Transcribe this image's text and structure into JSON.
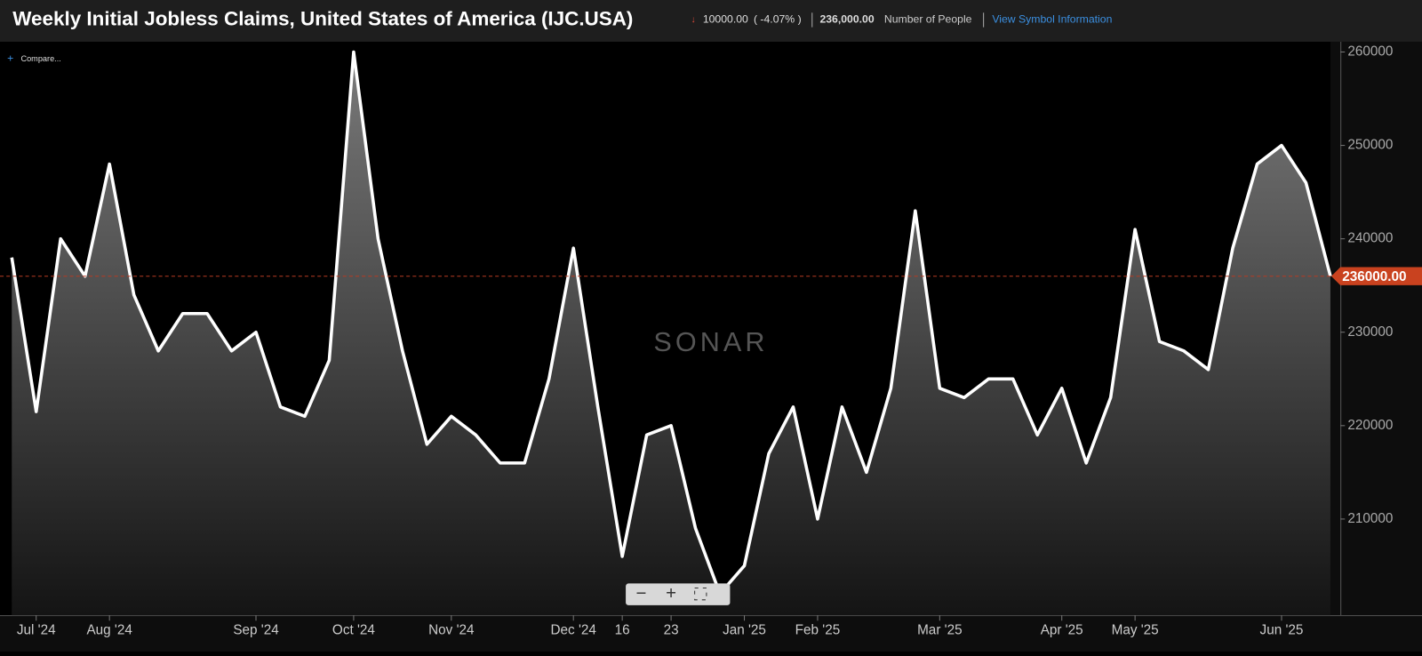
{
  "header": {
    "title": "Weekly Initial Jobless Claims, United States of America (IJC.USA)",
    "change": "10000.00",
    "change_pct": "( -4.07% )",
    "last": "236,000.00",
    "unit": "Number of People",
    "link": "View Symbol Information"
  },
  "compare": "Compare...",
  "watermark": "SONAR",
  "chart_data": {
    "type": "area-line",
    "color": "#ffffff",
    "categories": [
      null,
      "Jul '24",
      null,
      null,
      "Aug '24",
      null,
      null,
      null,
      null,
      null,
      "Sep '24",
      null,
      null,
      null,
      "Oct '24",
      null,
      null,
      null,
      "Nov '24",
      null,
      null,
      null,
      null,
      "Dec '24",
      null,
      "16",
      null,
      "23",
      null,
      null,
      "Jan '25",
      null,
      null,
      "Feb '25",
      null,
      null,
      null,
      null,
      "Mar '25",
      null,
      null,
      null,
      null,
      "Apr '25",
      null,
      null,
      "May '25",
      null,
      null,
      null,
      null,
      null,
      "Jun '25",
      null,
      null
    ],
    "values": [
      238000,
      221500,
      240000,
      236000,
      248000,
      234000,
      228000,
      232000,
      232000,
      228000,
      230000,
      222000,
      221000,
      227000,
      260000,
      240000,
      228000,
      218000,
      221000,
      219000,
      216000,
      216000,
      225000,
      239000,
      222000,
      206000,
      219000,
      220000,
      209000,
      202000,
      205000,
      217000,
      222000,
      210000,
      222000,
      215000,
      224000,
      243000,
      224000,
      223000,
      225000,
      225000,
      219000,
      224000,
      216000,
      223000,
      241000,
      229000,
      228000,
      226000,
      239000,
      248000,
      250000,
      246000,
      236000
    ],
    "last_label": "236000.00",
    "ylim": [
      199700,
      261000
    ],
    "yticks": [
      210000,
      220000,
      230000,
      240000,
      250000,
      260000
    ]
  }
}
